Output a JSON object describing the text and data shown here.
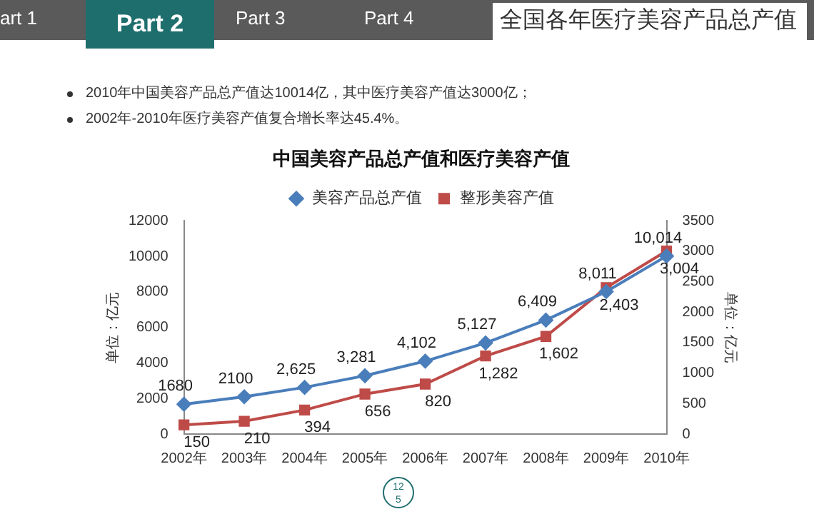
{
  "chart_data": {
    "type": "line",
    "title": "全国各年医疗美容产品总产值",
    "subtitle": "中国美容产品总产值和医疗美容产值",
    "annotations": [
      "art 1",
      "Part 2",
      "Part 3",
      "Part 4",
      "2010年中国美容产品总产值达10014亿，其中医疗美容产值达3000亿；",
      "2002年-2010年医疗美容产值复合增长率达45.4%。",
      "12\n5"
    ],
    "categories": [
      "2002年",
      "2003年",
      "2004年",
      "2005年",
      "2006年",
      "2007年",
      "2008年",
      "2009年",
      "2010年"
    ],
    "series": [
      {
        "name": "美容产品总产值",
        "color": "#4a7ebb",
        "marker": "diamond",
        "values": [
          1680,
          2100,
          2625,
          3281,
          4102,
          5127,
          6409,
          8011,
          10014
        ],
        "value_labels": [
          "1680",
          "2100",
          "2,625",
          "3,281",
          "4,102",
          "5,127",
          "6,409",
          "8,011",
          "10,014"
        ]
      },
      {
        "name": "整形美容产值",
        "color": "#be4b48",
        "marker": "square",
        "axis": "y2",
        "values": [
          150,
          210,
          394,
          656,
          820,
          1282,
          1602,
          2403,
          3004
        ],
        "value_labels": [
          "150",
          "210",
          "394",
          "656",
          "820",
          "1,282",
          "1,602",
          "2,403",
          "3,004"
        ]
      }
    ],
    "y2label": "单位：亿元",
    "ylabel": "单位：亿元",
    "ylim": [
      0,
      12000
    ],
    "yticks": [
      0,
      2000,
      4000,
      6000,
      8000,
      10000,
      12000
    ],
    "y2lim": [
      0,
      3500
    ],
    "y2ticks": [
      0,
      500,
      1000,
      1500,
      2000,
      2500,
      3000,
      3500
    ],
    "legend": "top",
    "grid": false
  }
}
